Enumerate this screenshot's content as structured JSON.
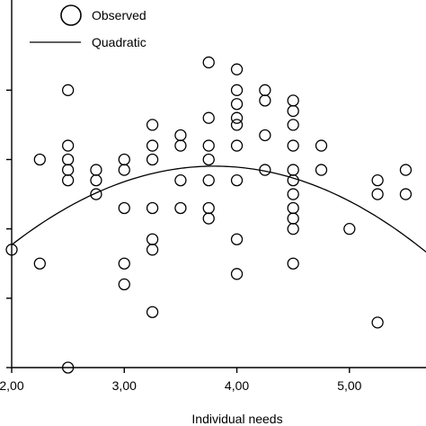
{
  "chart_data": {
    "type": "scatter",
    "xlabel": "Individual needs",
    "ylabel": "",
    "xlim": [
      2.0,
      5.68
    ],
    "ylim": [
      0.0,
      5.3
    ],
    "x_ticks": [
      2.0,
      3.0,
      4.0,
      5.0
    ],
    "x_tick_labels": [
      "2,00",
      "3,00",
      "4,00",
      "5,00"
    ],
    "y_ticks": [
      0,
      1,
      2,
      3,
      4
    ],
    "y_tick_labels": [
      "",
      "",
      "",
      "",
      ""
    ],
    "grid": false,
    "legend": {
      "placement": "top-left",
      "entries": [
        {
          "label": "Observed",
          "marker": "open-circle"
        },
        {
          "label": "Quadratic",
          "marker": "line"
        }
      ]
    },
    "series": [
      {
        "name": "Observed",
        "kind": "scatter",
        "points": [
          [
            2.0,
            1.7
          ],
          [
            2.25,
            3.0
          ],
          [
            2.25,
            1.5
          ],
          [
            2.5,
            4.0
          ],
          [
            2.5,
            3.2
          ],
          [
            2.5,
            3.0
          ],
          [
            2.5,
            2.85
          ],
          [
            2.5,
            2.7
          ],
          [
            2.5,
            0.0
          ],
          [
            2.75,
            2.85
          ],
          [
            2.75,
            2.7
          ],
          [
            2.75,
            2.5
          ],
          [
            3.0,
            3.0
          ],
          [
            3.0,
            2.85
          ],
          [
            3.0,
            2.3
          ],
          [
            3.0,
            1.5
          ],
          [
            3.0,
            1.2
          ],
          [
            3.25,
            3.5
          ],
          [
            3.25,
            3.2
          ],
          [
            3.25,
            3.0
          ],
          [
            3.25,
            2.3
          ],
          [
            3.25,
            1.85
          ],
          [
            3.25,
            1.7
          ],
          [
            3.25,
            0.8
          ],
          [
            3.5,
            3.35
          ],
          [
            3.5,
            3.2
          ],
          [
            3.5,
            2.7
          ],
          [
            3.5,
            2.3
          ],
          [
            3.75,
            4.4
          ],
          [
            3.75,
            3.6
          ],
          [
            3.75,
            3.2
          ],
          [
            3.75,
            3.0
          ],
          [
            3.75,
            2.7
          ],
          [
            3.75,
            2.3
          ],
          [
            3.75,
            2.15
          ],
          [
            4.0,
            4.3
          ],
          [
            4.0,
            4.0
          ],
          [
            4.0,
            3.8
          ],
          [
            4.0,
            3.6
          ],
          [
            4.0,
            3.5
          ],
          [
            4.0,
            3.2
          ],
          [
            4.0,
            2.7
          ],
          [
            4.0,
            1.85
          ],
          [
            4.0,
            1.35
          ],
          [
            4.25,
            4.0
          ],
          [
            4.25,
            3.85
          ],
          [
            4.25,
            3.35
          ],
          [
            4.25,
            2.85
          ],
          [
            4.5,
            3.85
          ],
          [
            4.5,
            3.7
          ],
          [
            4.5,
            3.5
          ],
          [
            4.5,
            3.2
          ],
          [
            4.5,
            2.85
          ],
          [
            4.5,
            2.7
          ],
          [
            4.5,
            2.5
          ],
          [
            4.5,
            2.3
          ],
          [
            4.5,
            2.15
          ],
          [
            4.5,
            2.0
          ],
          [
            4.5,
            1.5
          ],
          [
            4.75,
            3.2
          ],
          [
            4.75,
            2.85
          ],
          [
            5.0,
            2.0
          ],
          [
            5.25,
            2.7
          ],
          [
            5.25,
            2.5
          ],
          [
            5.25,
            0.65
          ],
          [
            5.5,
            2.85
          ],
          [
            5.5,
            2.5
          ]
        ]
      },
      {
        "name": "Quadratic",
        "kind": "line",
        "coefficients": {
          "a": -0.35,
          "b": 2.66,
          "c": -2.15
        }
      }
    ]
  }
}
